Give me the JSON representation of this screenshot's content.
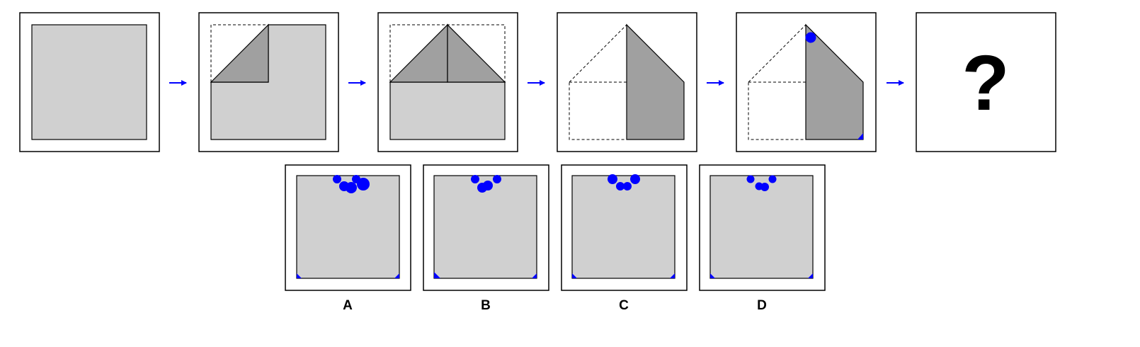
{
  "puzzle": {
    "colors": {
      "paper": "#d0d0d0",
      "flap": "#a0a0a0",
      "hole": "#0000ff",
      "arrow": "#0000ff",
      "outline": "#000000"
    },
    "steps": [
      {
        "id": "step-1-unfolded-square"
      },
      {
        "id": "step-2-corner-folded"
      },
      {
        "id": "step-3-both-corners-folded"
      },
      {
        "id": "step-4-left-half-folded"
      },
      {
        "id": "step-5-holes-punched"
      },
      {
        "id": "step-6-answer-unknown",
        "text": "?"
      }
    ],
    "arrow_count": 5,
    "question_text": "?",
    "options": [
      {
        "label": "A"
      },
      {
        "label": "B"
      },
      {
        "label": "C"
      },
      {
        "label": "D"
      }
    ]
  }
}
